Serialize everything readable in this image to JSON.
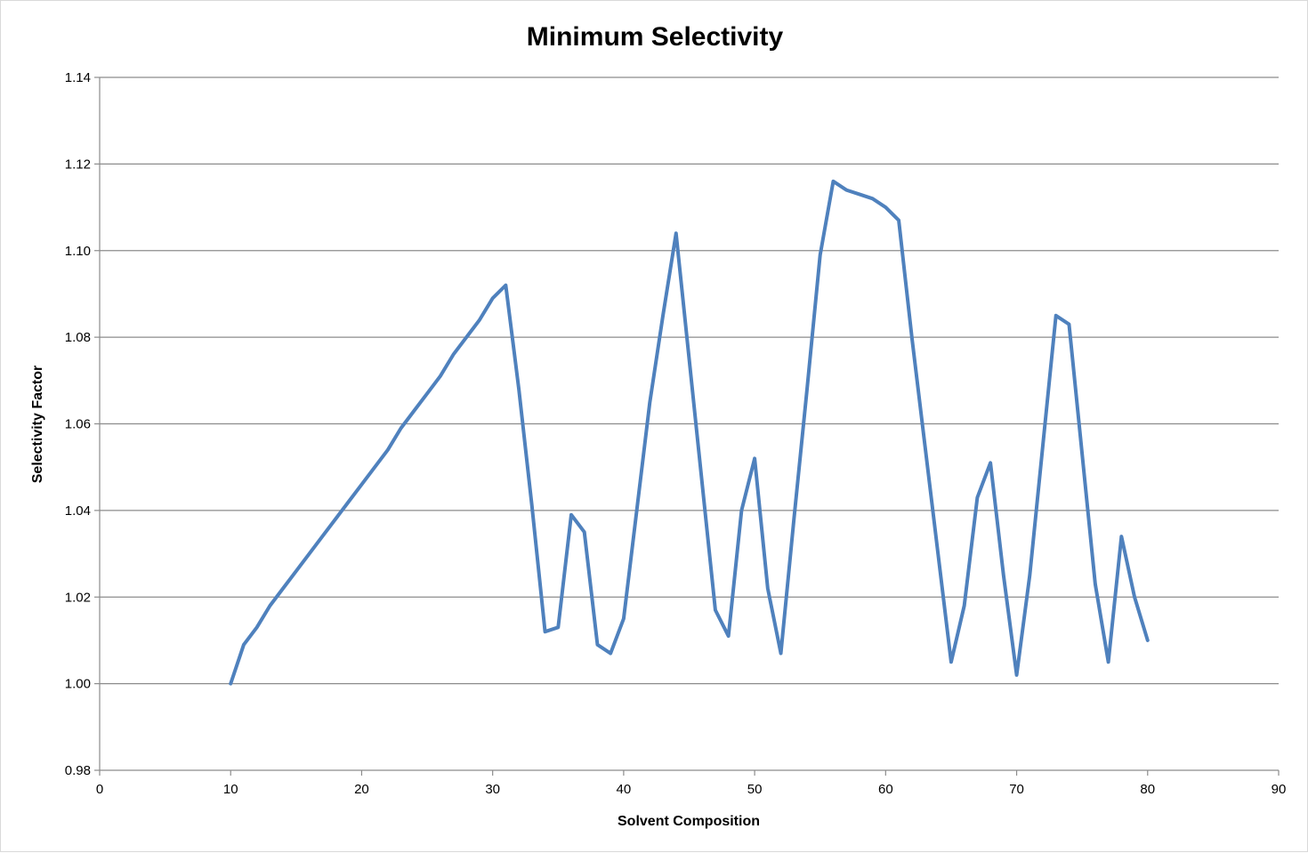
{
  "chart_data": {
    "type": "line",
    "title": "Minimum Selectivity",
    "xlabel": "Solvent Composition",
    "ylabel": "Selectivity Factor",
    "xlim": [
      0,
      90
    ],
    "ylim": [
      0.98,
      1.14
    ],
    "x_ticks": [
      0,
      10,
      20,
      30,
      40,
      50,
      60,
      70,
      80,
      90
    ],
    "y_ticks": [
      0.98,
      1.0,
      1.02,
      1.04,
      1.06,
      1.08,
      1.1,
      1.12,
      1.14
    ],
    "x_tick_labels": [
      "0",
      "10",
      "20",
      "30",
      "40",
      "50",
      "60",
      "70",
      "80",
      "90"
    ],
    "y_tick_labels": [
      "0.98",
      "1.00",
      "1.02",
      "1.04",
      "1.06",
      "1.08",
      "1.10",
      "1.12",
      "1.14"
    ],
    "grid": true,
    "legend": "none",
    "series_color": "#4f81bd",
    "series": [
      {
        "x": [
          10,
          11,
          12,
          13,
          14,
          15,
          16,
          17,
          18,
          19,
          20,
          21,
          22,
          23,
          24,
          25,
          26,
          27,
          28,
          29,
          30,
          31,
          32,
          33,
          34,
          35,
          36,
          37,
          38,
          39,
          40,
          41,
          42,
          43,
          44,
          45,
          46,
          47,
          48,
          49,
          50,
          51,
          52,
          53,
          54,
          55,
          56,
          57,
          58,
          59,
          60,
          61,
          62,
          63,
          64,
          65,
          66,
          67,
          68,
          69,
          70,
          71,
          72,
          73,
          74,
          75,
          76,
          77,
          78,
          79,
          80
        ],
        "values": [
          1.0,
          1.009,
          1.013,
          1.018,
          1.022,
          1.026,
          1.03,
          1.034,
          1.038,
          1.042,
          1.046,
          1.05,
          1.054,
          1.059,
          1.063,
          1.067,
          1.071,
          1.076,
          1.08,
          1.084,
          1.089,
          1.092,
          1.068,
          1.041,
          1.012,
          1.013,
          1.039,
          1.035,
          1.009,
          1.007,
          1.015,
          1.04,
          1.065,
          1.085,
          1.104,
          1.075,
          1.046,
          1.017,
          1.011,
          1.04,
          1.052,
          1.022,
          1.007,
          1.038,
          1.068,
          1.099,
          1.116,
          1.114,
          1.113,
          1.112,
          1.11,
          1.107,
          1.08,
          1.055,
          1.03,
          1.005,
          1.018,
          1.043,
          1.051,
          1.025,
          1.002,
          1.025,
          1.055,
          1.085,
          1.083,
          1.053,
          1.023,
          1.005,
          1.034,
          1.02,
          1.01
        ]
      }
    ]
  }
}
